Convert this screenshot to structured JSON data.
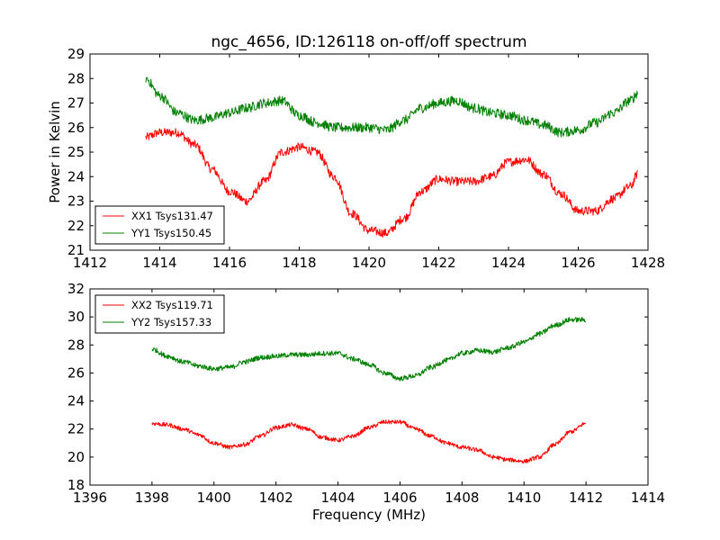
{
  "chart_data": [
    {
      "type": "line",
      "title": "ngc_4656, ID:126118 on-off/off spectrum",
      "xlabel": "",
      "ylabel": "Power in Kelvin",
      "xlim": [
        1412,
        1428
      ],
      "ylim": [
        21,
        29
      ],
      "xticks": [
        1412,
        1414,
        1416,
        1418,
        1420,
        1422,
        1424,
        1426,
        1428
      ],
      "yticks": [
        21,
        22,
        23,
        24,
        25,
        26,
        27,
        28,
        29
      ],
      "legend_position": "lower-left",
      "grid": false,
      "series": [
        {
          "name": "XX1 Tsys131.47",
          "color": "#ff0000",
          "noise": 0.18,
          "x": [
            1413.6,
            1414.0,
            1414.5,
            1415.0,
            1415.5,
            1416.0,
            1416.5,
            1417.0,
            1417.5,
            1418.0,
            1418.5,
            1419.0,
            1419.5,
            1420.0,
            1420.5,
            1421.0,
            1421.5,
            1422.0,
            1422.5,
            1423.0,
            1423.5,
            1424.0,
            1424.5,
            1425.0,
            1425.5,
            1426.0,
            1426.5,
            1427.0,
            1427.5,
            1427.7
          ],
          "y": [
            25.6,
            25.8,
            25.8,
            25.3,
            24.3,
            23.4,
            23.0,
            23.8,
            25.0,
            25.2,
            25.0,
            24.0,
            22.5,
            21.8,
            21.7,
            22.3,
            23.4,
            23.9,
            23.8,
            23.8,
            24.0,
            24.6,
            24.7,
            24.1,
            23.3,
            22.6,
            22.6,
            23.1,
            23.6,
            24.1
          ]
        },
        {
          "name": "YY1 Tsys150.45",
          "color": "#008000",
          "noise": 0.2,
          "x": [
            1413.6,
            1414.0,
            1414.5,
            1415.0,
            1415.5,
            1416.0,
            1416.5,
            1417.0,
            1417.5,
            1418.0,
            1418.5,
            1419.0,
            1419.5,
            1420.0,
            1420.5,
            1421.0,
            1421.5,
            1422.0,
            1422.5,
            1423.0,
            1423.5,
            1424.0,
            1424.5,
            1425.0,
            1425.5,
            1426.0,
            1426.5,
            1427.0,
            1427.5,
            1427.7
          ],
          "y": [
            28.0,
            27.3,
            26.6,
            26.3,
            26.4,
            26.6,
            26.8,
            27.0,
            27.1,
            26.5,
            26.2,
            26.0,
            26.0,
            26.0,
            25.9,
            26.3,
            26.8,
            27.0,
            27.1,
            26.8,
            26.6,
            26.5,
            26.3,
            26.1,
            25.8,
            25.9,
            26.2,
            26.6,
            27.1,
            27.4
          ]
        }
      ]
    },
    {
      "type": "line",
      "title": "",
      "xlabel": "Frequency (MHz)",
      "ylabel": "",
      "xlim": [
        1396,
        1414
      ],
      "ylim": [
        18,
        32
      ],
      "xticks": [
        1396,
        1398,
        1400,
        1402,
        1404,
        1406,
        1408,
        1410,
        1412,
        1414
      ],
      "yticks": [
        18,
        20,
        22,
        24,
        26,
        28,
        30,
        32
      ],
      "legend_position": "upper-left",
      "grid": false,
      "series": [
        {
          "name": "XX2 Tsys119.71",
          "color": "#ff0000",
          "noise": 0.15,
          "x": [
            1398.0,
            1398.5,
            1399.0,
            1399.5,
            1400.0,
            1400.5,
            1401.0,
            1401.5,
            1402.0,
            1402.5,
            1403.0,
            1403.5,
            1404.0,
            1404.5,
            1405.0,
            1405.5,
            1406.0,
            1406.5,
            1407.0,
            1407.5,
            1408.0,
            1408.5,
            1409.0,
            1409.5,
            1410.0,
            1410.5,
            1411.0,
            1411.5,
            1412.0
          ],
          "y": [
            22.4,
            22.3,
            22.0,
            21.6,
            21.0,
            20.7,
            20.9,
            21.5,
            22.1,
            22.3,
            22.0,
            21.4,
            21.2,
            21.5,
            22.1,
            22.5,
            22.5,
            22.0,
            21.5,
            21.0,
            20.7,
            20.5,
            20.0,
            19.8,
            19.7,
            20.0,
            20.9,
            21.8,
            22.4
          ]
        },
        {
          "name": "YY2 Tsys157.33",
          "color": "#008000",
          "noise": 0.18,
          "x": [
            1398.0,
            1398.5,
            1399.0,
            1399.5,
            1400.0,
            1400.5,
            1401.0,
            1401.5,
            1402.0,
            1402.5,
            1403.0,
            1403.5,
            1404.0,
            1404.5,
            1405.0,
            1405.5,
            1406.0,
            1406.5,
            1407.0,
            1407.5,
            1408.0,
            1408.5,
            1409.0,
            1409.5,
            1410.0,
            1410.5,
            1411.0,
            1411.5,
            1412.0
          ],
          "y": [
            27.7,
            27.2,
            26.8,
            26.5,
            26.3,
            26.4,
            26.8,
            27.1,
            27.2,
            27.3,
            27.3,
            27.4,
            27.4,
            27.0,
            26.6,
            26.0,
            25.6,
            25.8,
            26.4,
            26.9,
            27.4,
            27.6,
            27.5,
            27.8,
            28.2,
            28.8,
            29.4,
            29.8,
            29.8
          ]
        }
      ]
    }
  ]
}
